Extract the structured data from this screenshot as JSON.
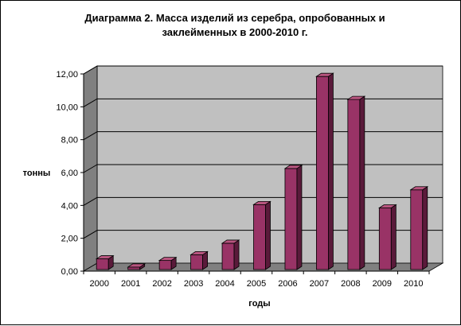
{
  "chart_data": {
    "type": "bar",
    "title_lines": [
      "Диаграмма 2. Масса изделий из серебра, опробованных и",
      "заклейменных в 2000-2010  г."
    ],
    "xlabel": "годы",
    "ylabel": "тонны",
    "categories": [
      "2000",
      "2001",
      "2002",
      "2003",
      "2004",
      "2005",
      "2006",
      "2007",
      "2008",
      "2009",
      "2010"
    ],
    "values": [
      0.65,
      0.15,
      0.55,
      0.9,
      1.6,
      3.95,
      6.15,
      11.75,
      10.35,
      3.75,
      4.85
    ],
    "ylim": [
      0,
      12
    ],
    "yticks": [
      "0,00",
      "2,00",
      "4,00",
      "6,00",
      "8,00",
      "10,00",
      "12,00"
    ],
    "grid": true,
    "legend": "none",
    "colors": {
      "bar_front": "#993366",
      "bar_side": "#5a1a3a",
      "bar_top": "#b8557f",
      "wall": "#c0c0c0",
      "floor": "#808080",
      "gridline": "#000000"
    }
  }
}
